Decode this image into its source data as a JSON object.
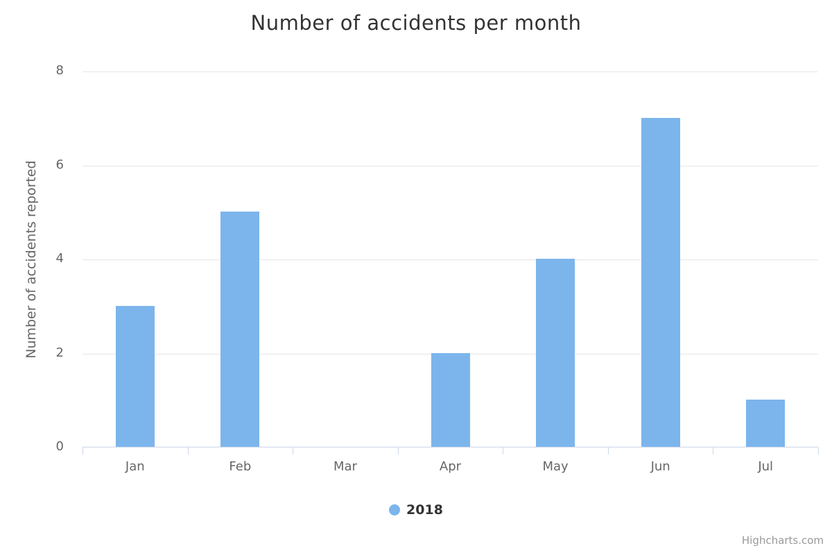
{
  "title": "Number of accidents per month",
  "chart_data": {
    "type": "bar",
    "title": "Number of accidents per month",
    "categories": [
      "Jan",
      "Feb",
      "Mar",
      "Apr",
      "May",
      "Jun",
      "Jul"
    ],
    "series": [
      {
        "name": "2018",
        "values": [
          3,
          5,
          0,
          2,
          4,
          7,
          1
        ]
      }
    ],
    "xlabel": "",
    "ylabel": "Number of accidents reported",
    "ylim": [
      0,
      8
    ],
    "yticks": [
      0,
      2,
      4,
      6,
      8
    ],
    "grid": true,
    "legend_position": "bottom-center"
  },
  "legend": {
    "label": "2018"
  },
  "credits": {
    "label": "Highcharts.com"
  },
  "colors": {
    "bar": "#7cb5ec",
    "title_text": "#333333",
    "axis_label_text": "#666666",
    "gridline": "#e6e6e6",
    "axis_line": "#ccd6eb",
    "legend_text": "#333333",
    "credits_text": "#999999",
    "background": "#ffffff"
  }
}
